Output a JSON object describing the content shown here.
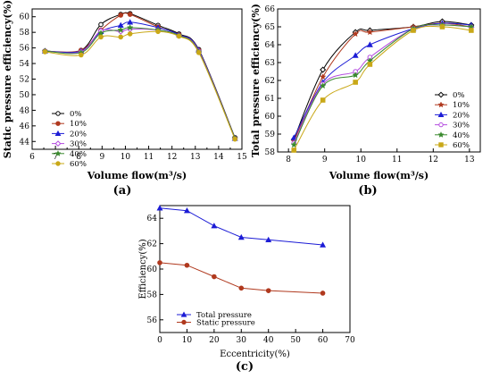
{
  "panels": {
    "a": "(a)",
    "b": "(b)",
    "c": "(c)"
  },
  "chart_data": [
    {
      "id": "a",
      "type": "line",
      "xlabel": "Volume flow(m³/s)",
      "ylabel": "Static pressure efficiency(%)",
      "xlim": [
        6,
        15
      ],
      "ylim": [
        43,
        61
      ],
      "xticks": [
        6,
        6.5,
        7,
        7.5,
        8,
        8.5,
        9,
        9.5,
        10,
        10.5,
        11,
        11.5,
        12,
        12.5,
        13,
        13.5,
        14,
        14.5,
        15
      ],
      "xtick_labels": [
        "6",
        "",
        "7",
        "",
        "8",
        "",
        "9",
        "",
        "10",
        "",
        "11",
        "",
        "12",
        "",
        "13",
        "",
        "14",
        "",
        "15"
      ],
      "yticks": [
        44,
        46,
        48,
        50,
        52,
        54,
        56,
        58,
        60
      ],
      "legend_position": "left",
      "series": [
        {
          "name": "0%",
          "color": "#000000",
          "marker": "circle-open",
          "x": [
            6.55,
            8.1,
            8.95,
            9.8,
            10.2,
            11.4,
            12.3,
            13.15,
            14.7
          ],
          "y": [
            55.6,
            55.7,
            59.0,
            60.3,
            60.4,
            58.9,
            57.8,
            55.8,
            44.5
          ]
        },
        {
          "name": "10%",
          "color": "#b0391e",
          "marker": "circle",
          "x": [
            6.55,
            8.1,
            8.95,
            9.8,
            10.2,
            11.4,
            12.3,
            13.15,
            14.7
          ],
          "y": [
            55.6,
            55.7,
            58.3,
            60.2,
            60.3,
            58.7,
            57.7,
            55.7,
            44.4
          ]
        },
        {
          "name": "20%",
          "color": "#1c1cd6",
          "marker": "triangle",
          "x": [
            6.55,
            8.1,
            8.95,
            9.8,
            10.2,
            11.4,
            12.3,
            13.15,
            14.7
          ],
          "y": [
            55.6,
            55.6,
            58.1,
            58.9,
            59.3,
            58.6,
            57.7,
            55.7,
            44.4
          ]
        },
        {
          "name": "30%",
          "color": "#b44ce0",
          "marker": "diamond-open",
          "x": [
            6.55,
            8.1,
            8.95,
            9.8,
            10.2,
            11.4,
            12.3,
            13.15,
            14.7
          ],
          "y": [
            55.6,
            55.5,
            58.2,
            58.1,
            58.4,
            58.3,
            57.6,
            55.6,
            44.4
          ]
        },
        {
          "name": "40%",
          "color": "#3a8a2e",
          "marker": "star",
          "x": [
            6.55,
            8.1,
            8.95,
            9.8,
            10.2,
            11.4,
            12.3,
            13.15,
            14.7
          ],
          "y": [
            55.6,
            55.4,
            57.9,
            58.3,
            58.6,
            58.3,
            57.6,
            55.5,
            44.4
          ]
        },
        {
          "name": "60%",
          "color": "#c9a818",
          "marker": "circle",
          "x": [
            6.55,
            8.1,
            8.95,
            9.8,
            10.2,
            11.4,
            12.3,
            13.15,
            14.7
          ],
          "y": [
            55.5,
            55.1,
            57.4,
            57.4,
            57.8,
            58.1,
            57.5,
            55.4,
            44.3
          ]
        }
      ]
    },
    {
      "id": "b",
      "type": "line",
      "xlabel": "Volume flow(m³/s)",
      "ylabel": "Total pressure efficiency(%)",
      "xlim": [
        7.7,
        13.3
      ],
      "ylim": [
        58,
        66
      ],
      "xticks": [
        8,
        9,
        10,
        11,
        12,
        13
      ],
      "yticks": [
        58,
        59,
        60,
        61,
        62,
        63,
        64,
        65,
        66
      ],
      "legend_position": "right",
      "series": [
        {
          "name": "0%",
          "color": "#000000",
          "marker": "diamond-open",
          "x": [
            8.15,
            8.95,
            9.85,
            10.25,
            11.45,
            12.25,
            13.05
          ],
          "y": [
            58.7,
            62.6,
            64.7,
            64.8,
            65.0,
            65.3,
            65.1
          ]
        },
        {
          "name": "10%",
          "color": "#b0391e",
          "marker": "star",
          "x": [
            8.15,
            8.95,
            9.85,
            10.25,
            11.45,
            12.25,
            13.05
          ],
          "y": [
            58.6,
            62.2,
            64.6,
            64.7,
            65.0,
            65.2,
            65.0
          ]
        },
        {
          "name": "20%",
          "color": "#1c1cd6",
          "marker": "triangle",
          "x": [
            8.15,
            8.95,
            9.85,
            10.25,
            11.45,
            12.25,
            13.05
          ],
          "y": [
            58.8,
            61.9,
            63.4,
            64.0,
            64.9,
            65.2,
            65.1
          ]
        },
        {
          "name": "30%",
          "color": "#b44ce0",
          "marker": "circle-open",
          "x": [
            8.15,
            8.95,
            9.85,
            10.25,
            11.45,
            12.25,
            13.05
          ],
          "y": [
            58.5,
            61.8,
            62.5,
            63.3,
            64.9,
            65.1,
            65.0
          ]
        },
        {
          "name": "40%",
          "color": "#3a8a2e",
          "marker": "star",
          "x": [
            8.15,
            8.95,
            9.85,
            10.25,
            11.45,
            12.25,
            13.05
          ],
          "y": [
            58.4,
            61.7,
            62.3,
            63.1,
            64.9,
            65.1,
            65.0
          ]
        },
        {
          "name": "60%",
          "color": "#c9a818",
          "marker": "square",
          "x": [
            8.15,
            8.95,
            9.85,
            10.25,
            11.45,
            12.25,
            13.05
          ],
          "y": [
            58.1,
            60.9,
            61.9,
            62.9,
            64.8,
            65.0,
            64.8
          ]
        }
      ]
    },
    {
      "id": "c",
      "type": "line",
      "xlabel": "Eccentricity(%)",
      "ylabel": "Efficiency(%)",
      "xlim": [
        0,
        70
      ],
      "ylim": [
        55,
        65
      ],
      "xticks": [
        0,
        10,
        20,
        30,
        40,
        50,
        60,
        70
      ],
      "yticks": [
        56,
        58,
        60,
        62,
        64
      ],
      "legend_position": "bottom-left",
      "series": [
        {
          "name": "Total pressure",
          "color": "#1c1cd6",
          "marker": "triangle",
          "x": [
            0,
            10,
            20,
            30,
            40,
            60
          ],
          "y": [
            64.8,
            64.6,
            63.4,
            62.5,
            62.3,
            61.9
          ]
        },
        {
          "name": "Static pressure",
          "color": "#b0391e",
          "marker": "circle",
          "x": [
            0,
            10,
            20,
            30,
            40,
            60
          ],
          "y": [
            60.5,
            60.3,
            59.4,
            58.5,
            58.3,
            58.1
          ]
        }
      ]
    }
  ]
}
